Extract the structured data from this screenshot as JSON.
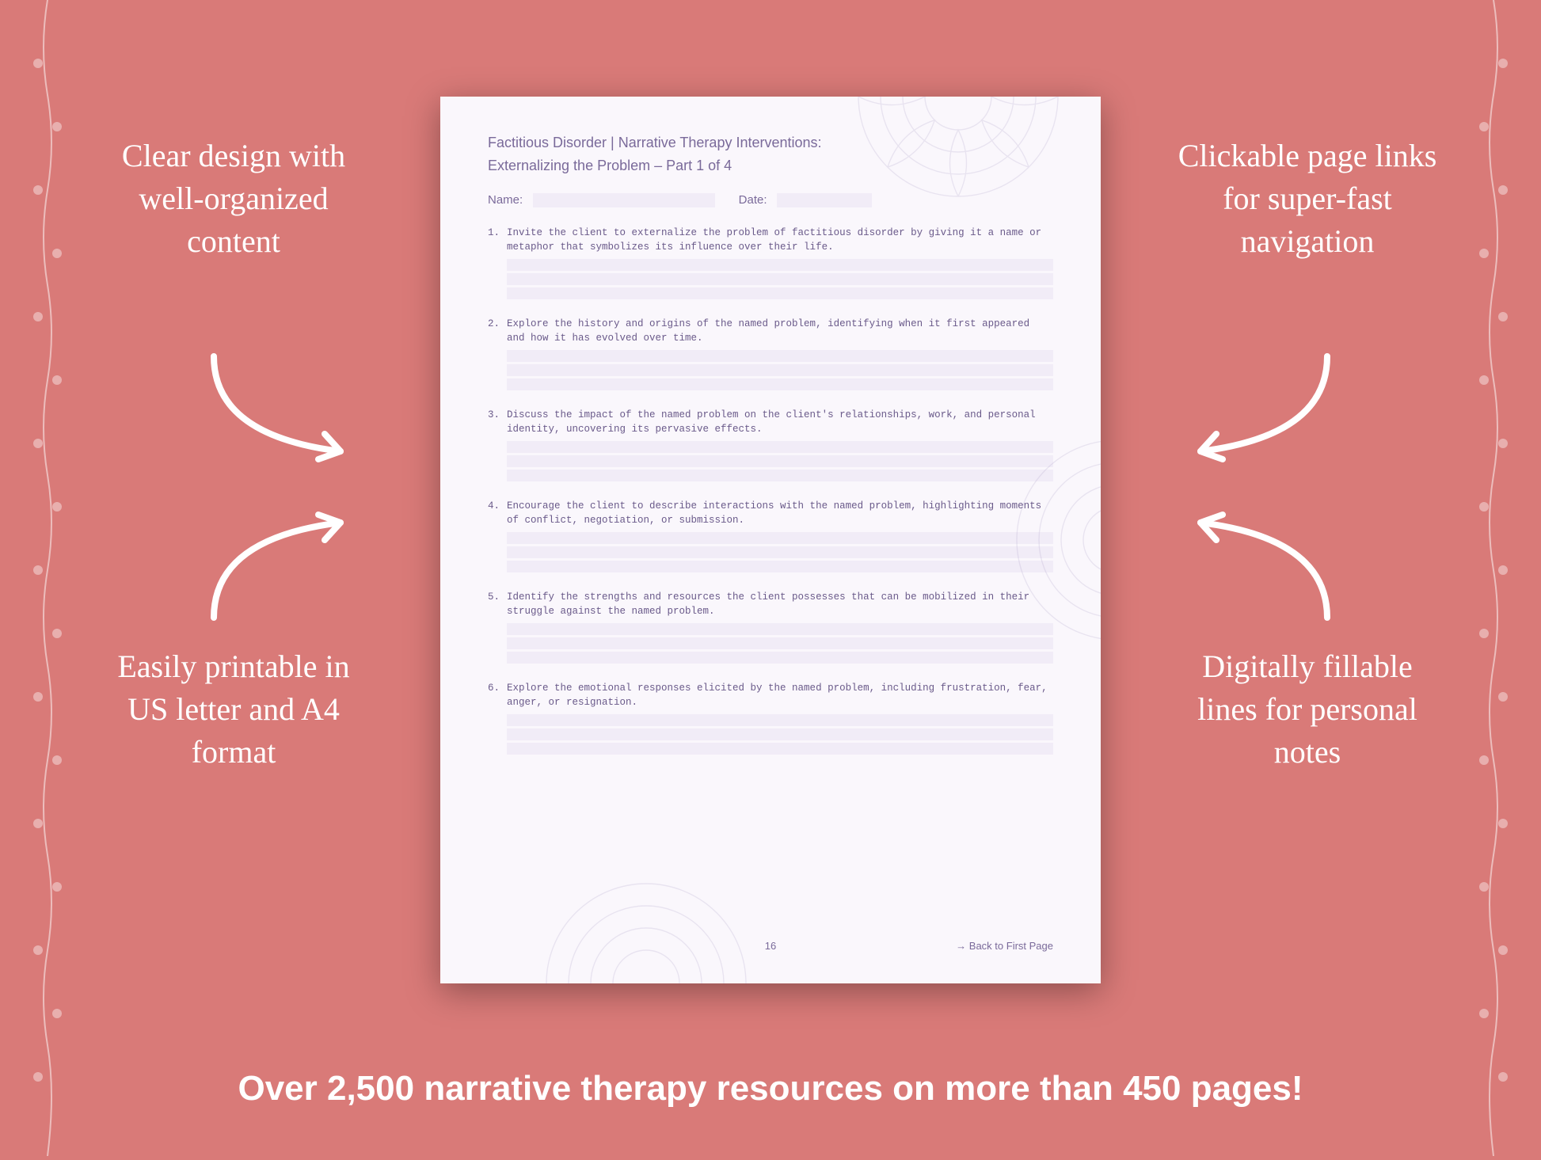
{
  "background_color": "#d97a78",
  "text_color": "#ffffff",
  "page_bg": "#faf7fc",
  "page_accent": "#7a6a9a",
  "field_bg": "#f1ecf7",
  "callouts": {
    "top_left": "Clear design with well-organized content",
    "top_right": "Clickable page links for super-fast navigation",
    "bottom_left": "Easily printable in US letter and A4 format",
    "bottom_right": "Digitally fillable lines for personal notes"
  },
  "bottom_banner": "Over 2,500 narrative therapy resources on more than 450 pages!",
  "worksheet": {
    "title": "Factitious Disorder | Narrative Therapy Interventions:",
    "subtitle": "Externalizing the Problem – Part 1 of 4",
    "name_label": "Name:",
    "date_label": "Date:",
    "items": [
      {
        "num": "1.",
        "text": "Invite the client to externalize the problem of factitious disorder by giving it a name or metaphor that symbolizes its influence over their life."
      },
      {
        "num": "2.",
        "text": "Explore the history and origins of the named problem, identifying when it first appeared and how it has evolved over time."
      },
      {
        "num": "3.",
        "text": "Discuss the impact of the named problem on the client's relationships, work, and personal identity, uncovering its pervasive effects."
      },
      {
        "num": "4.",
        "text": "Encourage the client to describe interactions with the named problem, highlighting moments of conflict, negotiation, or submission."
      },
      {
        "num": "5.",
        "text": "Identify the strengths and resources the client possesses that can be mobilized in their struggle against the named problem."
      },
      {
        "num": "6.",
        "text": "Explore the emotional responses elicited by the named problem, including frustration, fear, anger, or resignation."
      }
    ],
    "lines_per_item": 3,
    "page_number": "16",
    "back_link": "→ Back to First Page"
  }
}
